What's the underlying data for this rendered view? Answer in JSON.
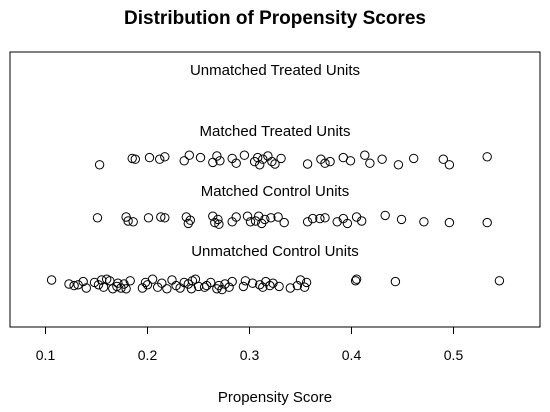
{
  "chart_data": {
    "type": "scatter",
    "title": "Distribution of Propensity Scores",
    "xlabel": "Propensity Score",
    "ylabel": "",
    "xlim": [
      0.08,
      0.57
    ],
    "xticks": [
      0.1,
      0.2,
      0.3,
      0.4,
      0.5
    ],
    "xtick_labels": [
      "0.1",
      "0.2",
      "0.3",
      "0.4",
      "0.5"
    ],
    "groups": [
      {
        "label": "Unmatched Treated Units",
        "points": []
      },
      {
        "label": "Matched Treated Units",
        "points": [
          [
            0.153,
            0.6
          ],
          [
            0.185,
            -0.2
          ],
          [
            0.188,
            -0.1
          ],
          [
            0.202,
            -0.3
          ],
          [
            0.212,
            -0.1
          ],
          [
            0.217,
            -0.4
          ],
          [
            0.236,
            0.1
          ],
          [
            0.241,
            -0.6
          ],
          [
            0.252,
            -0.3
          ],
          [
            0.264,
            0.3
          ],
          [
            0.268,
            -0.5
          ],
          [
            0.271,
            0.1
          ],
          [
            0.283,
            -0.2
          ],
          [
            0.287,
            0.4
          ],
          [
            0.295,
            -0.6
          ],
          [
            0.305,
            0.2
          ],
          [
            0.308,
            -0.3
          ],
          [
            0.31,
            0.6
          ],
          [
            0.313,
            -0.1
          ],
          [
            0.318,
            -0.5
          ],
          [
            0.322,
            0.2
          ],
          [
            0.325,
            0.5
          ],
          [
            0.331,
            -0.2
          ],
          [
            0.357,
            0.5
          ],
          [
            0.37,
            -0.1
          ],
          [
            0.374,
            0.4
          ],
          [
            0.379,
            0.2
          ],
          [
            0.392,
            -0.3
          ],
          [
            0.399,
            0.1
          ],
          [
            0.413,
            -0.6
          ],
          [
            0.418,
            0.4
          ],
          [
            0.43,
            -0.1
          ],
          [
            0.446,
            0.6
          ],
          [
            0.461,
            -0.2
          ],
          [
            0.49,
            -0.1
          ],
          [
            0.496,
            0.6
          ],
          [
            0.533,
            -0.4
          ]
        ]
      },
      {
        "label": "Matched Control Units",
        "points": [
          [
            0.151,
            -0.4
          ],
          [
            0.179,
            -0.5
          ],
          [
            0.181,
            0.0
          ],
          [
            0.186,
            0.1
          ],
          [
            0.201,
            -0.4
          ],
          [
            0.213,
            -0.5
          ],
          [
            0.217,
            -0.4
          ],
          [
            0.238,
            -0.5
          ],
          [
            0.24,
            0.3
          ],
          [
            0.242,
            -0.1
          ],
          [
            0.264,
            -0.6
          ],
          [
            0.266,
            0.2
          ],
          [
            0.269,
            -0.2
          ],
          [
            0.27,
            0.4
          ],
          [
            0.283,
            0.1
          ],
          [
            0.287,
            -0.5
          ],
          [
            0.298,
            -0.6
          ],
          [
            0.301,
            0.1
          ],
          [
            0.306,
            0.0
          ],
          [
            0.309,
            -0.6
          ],
          [
            0.312,
            0.3
          ],
          [
            0.315,
            -0.2
          ],
          [
            0.321,
            -0.4
          ],
          [
            0.328,
            -0.5
          ],
          [
            0.334,
            0.2
          ],
          [
            0.357,
            0.1
          ],
          [
            0.362,
            -0.3
          ],
          [
            0.369,
            -0.3
          ],
          [
            0.374,
            -0.4
          ],
          [
            0.386,
            0.1
          ],
          [
            0.392,
            -0.3
          ],
          [
            0.396,
            0.3
          ],
          [
            0.405,
            -0.5
          ],
          [
            0.41,
            0.0
          ],
          [
            0.433,
            -0.7
          ],
          [
            0.449,
            -0.2
          ],
          [
            0.471,
            0.1
          ],
          [
            0.496,
            0.2
          ],
          [
            0.533,
            0.2
          ]
        ]
      },
      {
        "label": "Unmatched Control Units",
        "points": [
          [
            0.106,
            -0.5
          ],
          [
            0.123,
            0.0
          ],
          [
            0.128,
            0.2
          ],
          [
            0.132,
            0.1
          ],
          [
            0.137,
            -0.3
          ],
          [
            0.14,
            0.5
          ],
          [
            0.148,
            -0.2
          ],
          [
            0.152,
            0.1
          ],
          [
            0.155,
            -0.5
          ],
          [
            0.157,
            0.4
          ],
          [
            0.16,
            -0.6
          ],
          [
            0.163,
            -0.4
          ],
          [
            0.166,
            0.6
          ],
          [
            0.17,
            0.3
          ],
          [
            0.171,
            -0.1
          ],
          [
            0.174,
            0.5
          ],
          [
            0.177,
            0.0
          ],
          [
            0.179,
            0.6
          ],
          [
            0.183,
            -0.4
          ],
          [
            0.195,
            0.5
          ],
          [
            0.198,
            -0.2
          ],
          [
            0.2,
            0.1
          ],
          [
            0.205,
            -0.6
          ],
          [
            0.21,
            0.4
          ],
          [
            0.214,
            -0.1
          ],
          [
            0.219,
            0.6
          ],
          [
            0.224,
            -0.5
          ],
          [
            0.228,
            0.2
          ],
          [
            0.232,
            0.5
          ],
          [
            0.236,
            -0.2
          ],
          [
            0.24,
            0.0
          ],
          [
            0.243,
            0.6
          ],
          [
            0.244,
            -0.4
          ],
          [
            0.247,
            -0.6
          ],
          [
            0.25,
            0.3
          ],
          [
            0.256,
            0.4
          ],
          [
            0.258,
            0.2
          ],
          [
            0.262,
            -0.2
          ],
          [
            0.268,
            0.6
          ],
          [
            0.27,
            0.2
          ],
          [
            0.273,
            0.7
          ],
          [
            0.276,
            0.0
          ],
          [
            0.28,
            0.4
          ],
          [
            0.283,
            -0.3
          ],
          [
            0.294,
            0.3
          ],
          [
            0.296,
            -0.4
          ],
          [
            0.303,
            -0.1
          ],
          [
            0.31,
            0.1
          ],
          [
            0.313,
            0.4
          ],
          [
            0.316,
            -0.3
          ],
          [
            0.32,
            0.2
          ],
          [
            0.323,
            -0.1
          ],
          [
            0.329,
            0.3
          ],
          [
            0.34,
            0.5
          ],
          [
            0.347,
            0.2
          ],
          [
            0.35,
            -0.5
          ],
          [
            0.354,
            0.4
          ],
          [
            0.356,
            -0.2
          ],
          [
            0.404,
            -0.4
          ],
          [
            0.405,
            -0.6
          ],
          [
            0.443,
            -0.3
          ],
          [
            0.545,
            -0.4
          ]
        ]
      }
    ]
  }
}
